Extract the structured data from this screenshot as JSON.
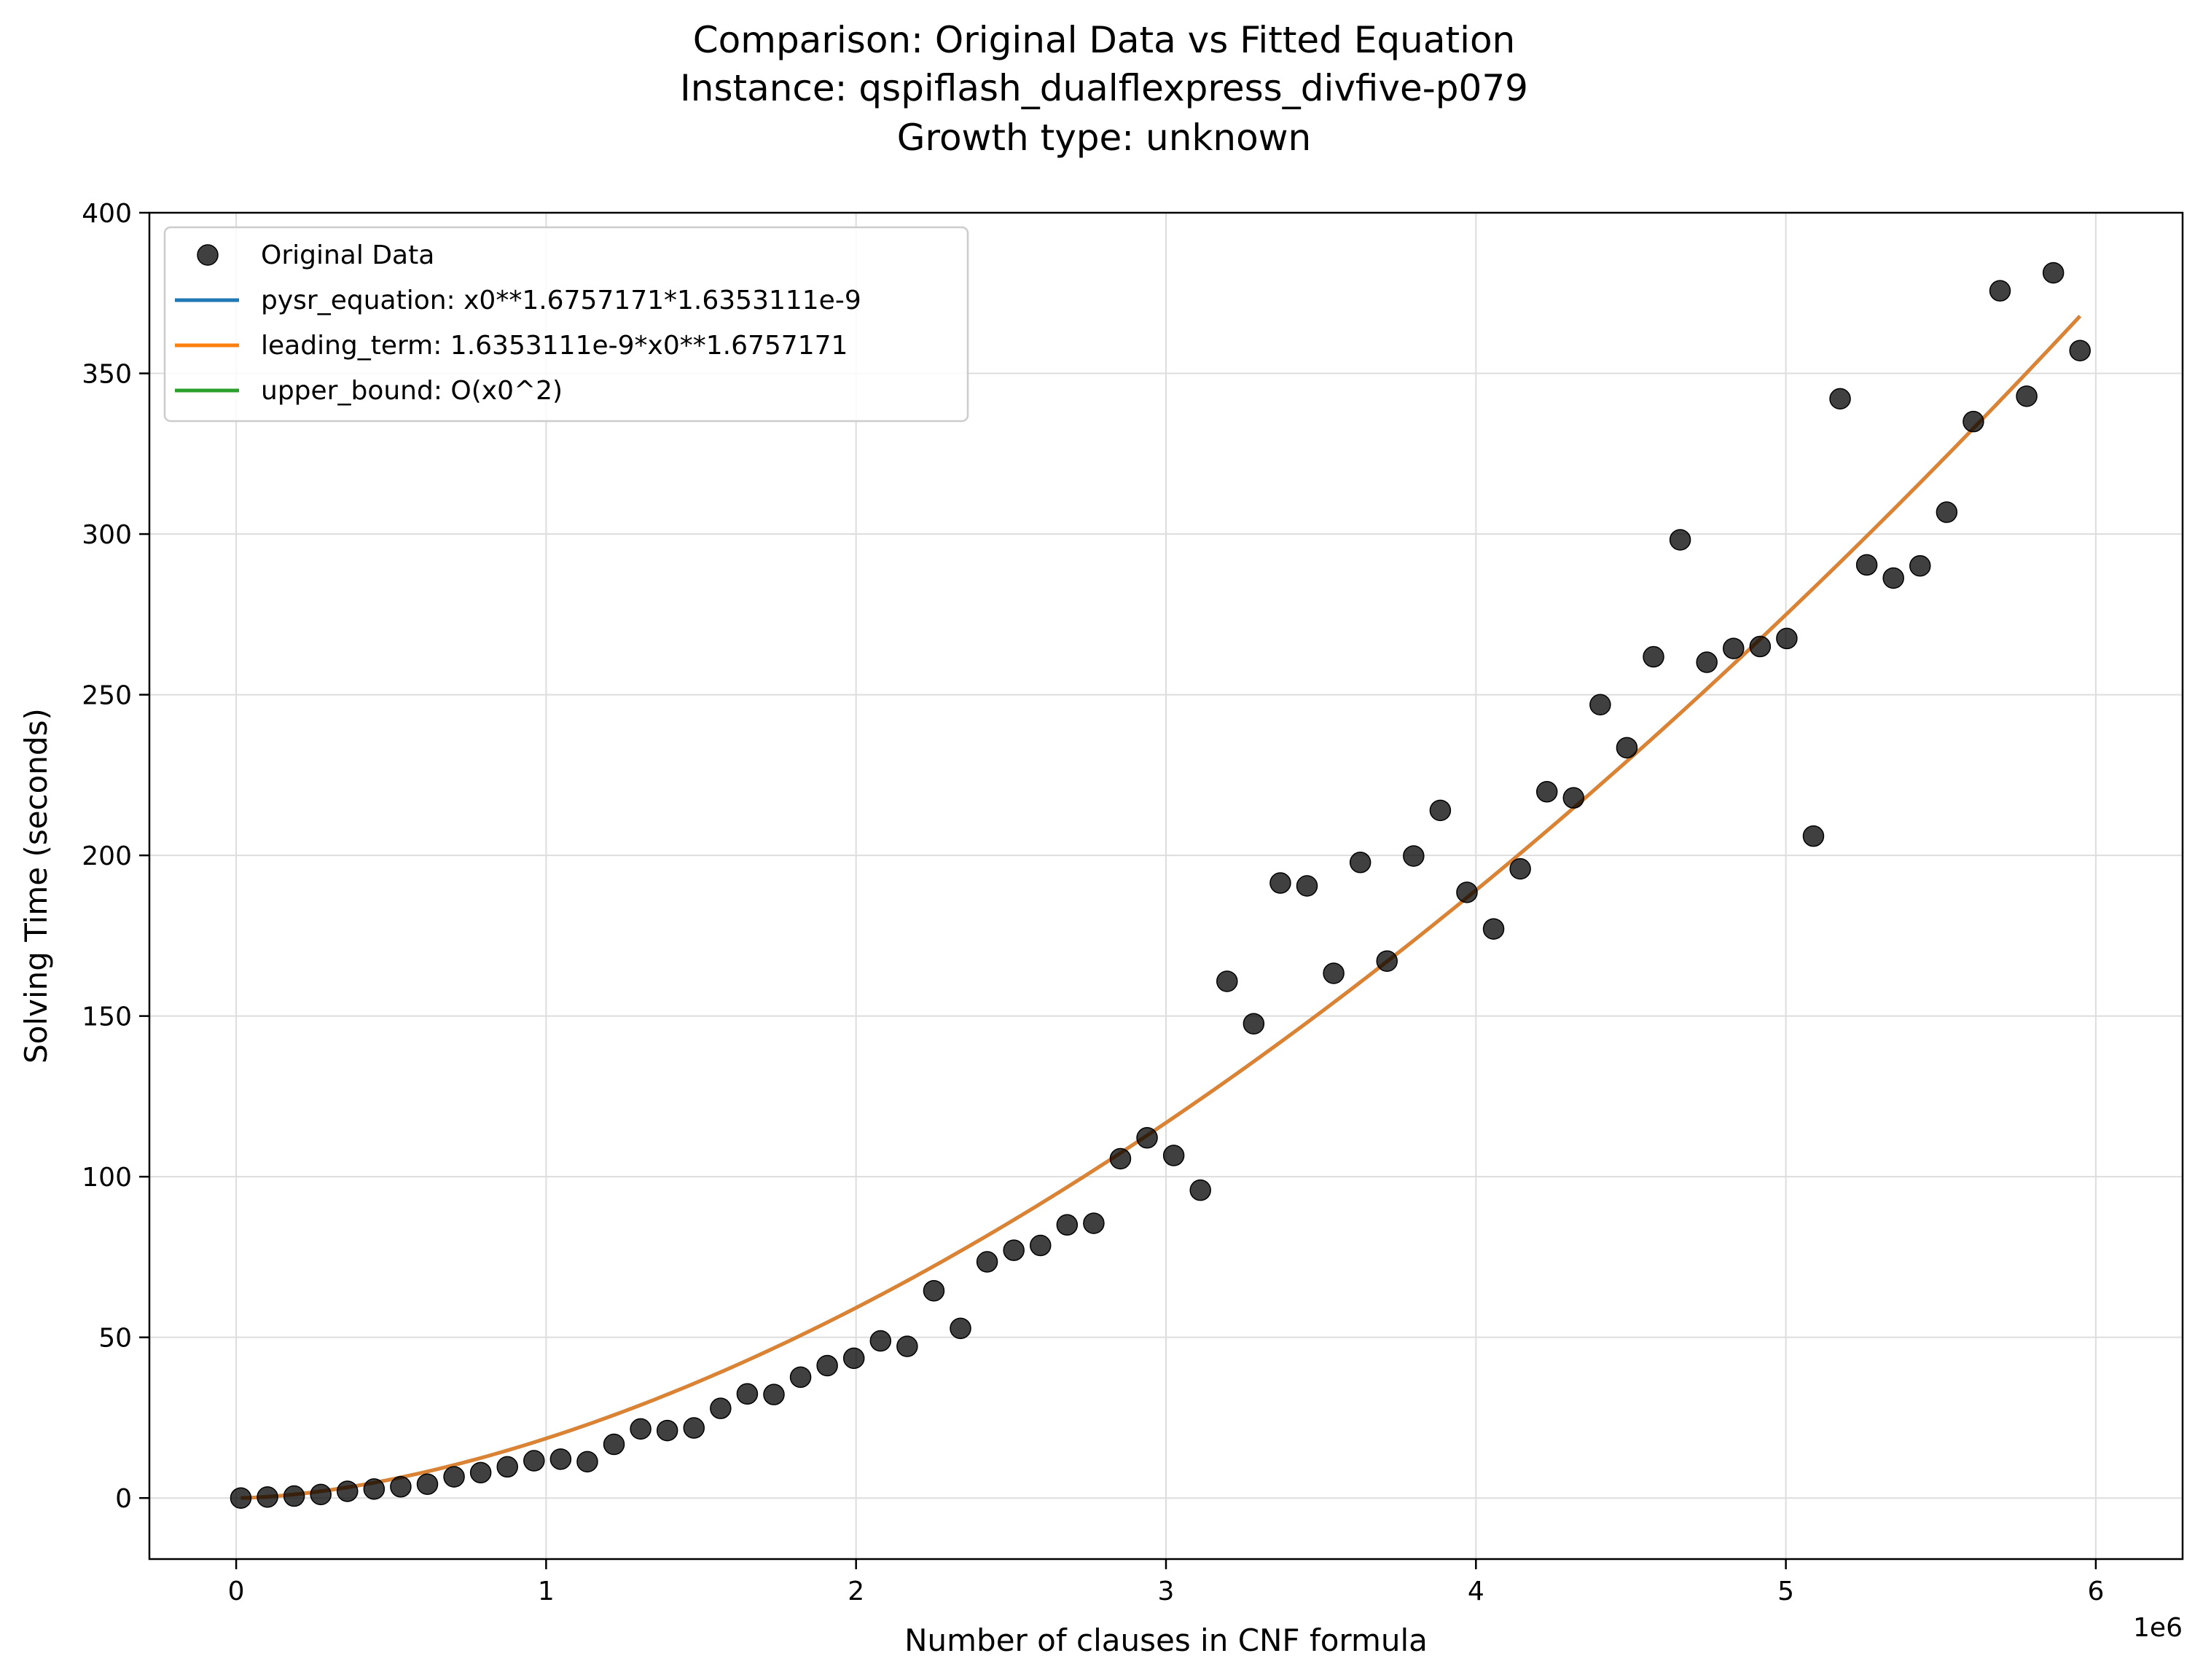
{
  "title_lines": [
    "Comparison: Original Data vs Fitted Equation",
    "Instance: qspiflash_dualflexpress_divfive-p079",
    "Growth type: unknown"
  ],
  "colors": {
    "scatter": "#000000",
    "pysr": "#1f77b4",
    "leading": "#ff7f0e",
    "upper": "#2ca02c",
    "grid": "#dddddd"
  },
  "chart_data": {
    "type": "scatter",
    "xlabel": "Number of clauses in CNF formula",
    "ylabel": "Solving Time (seconds)",
    "x_offset_label": "1e6",
    "xlim": [
      -0.28,
      6.28
    ],
    "ylim": [
      -19,
      400
    ],
    "x_ticks": [
      0,
      1,
      2,
      3,
      4,
      5,
      6
    ],
    "y_ticks": [
      0,
      50,
      100,
      150,
      200,
      250,
      300,
      350,
      400
    ],
    "x_unit_scale": 1000000,
    "grid": true,
    "legend_position": "top-left",
    "series": [
      {
        "name": "Original Data",
        "kind": "scatter",
        "x": [
          0.015,
          0.101,
          0.187,
          0.273,
          0.359,
          0.445,
          0.531,
          0.617,
          0.703,
          0.789,
          0.875,
          0.961,
          1.047,
          1.133,
          1.219,
          1.305,
          1.391,
          1.477,
          1.563,
          1.649,
          1.735,
          1.821,
          1.907,
          1.993,
          2.079,
          2.165,
          2.251,
          2.337,
          2.423,
          2.509,
          2.595,
          2.681,
          2.767,
          2.853,
          2.939,
          3.025,
          3.111,
          3.197,
          3.283,
          3.369,
          3.455,
          3.541,
          3.627,
          3.713,
          3.799,
          3.885,
          3.971,
          4.057,
          4.143,
          4.229,
          4.315,
          4.401,
          4.487,
          4.573,
          4.659,
          4.745,
          4.831,
          4.917,
          5.003,
          5.089,
          5.175,
          5.261,
          5.347,
          5.433,
          5.519,
          5.605,
          5.691,
          5.777,
          5.863,
          5.949
        ],
        "y": [
          0,
          0.3,
          0.6,
          1.1,
          2.1,
          2.8,
          3.5,
          4.3,
          6.6,
          7.9,
          9.7,
          11.6,
          12.1,
          11.3,
          16.7,
          21.5,
          21.0,
          21.8,
          27.9,
          32.4,
          32.2,
          37.6,
          41.2,
          43.5,
          48.9,
          47.2,
          64.5,
          52.8,
          73.5,
          77.1,
          78.6,
          85.0,
          85.5,
          105.6,
          112.1,
          106.6,
          95.8,
          160.8,
          147.6,
          191.4,
          190.5,
          163.3,
          197.8,
          167.1,
          199.8,
          214.0,
          188.5,
          177.1,
          195.8,
          219.8,
          217.9,
          246.9,
          233.5,
          261.8,
          298.2,
          260.1,
          264.4,
          265.0,
          267.5,
          206.0,
          342.1,
          290.4,
          286.3,
          290.1,
          306.8,
          335.0,
          375.7,
          342.9,
          381.3,
          357.1
        ]
      },
      {
        "name": "pysr_equation: x0**1.6757171*1.6353111e-9",
        "kind": "line",
        "coef": 1.6353111e-09,
        "exponent": 1.6757171
      },
      {
        "name": "leading_term: 1.6353111e-9*x0**1.6757171",
        "kind": "line",
        "coef": 1.6353111e-09,
        "exponent": 1.6757171
      },
      {
        "name": "upper_bound: O(x0^2)",
        "kind": "line"
      }
    ]
  }
}
